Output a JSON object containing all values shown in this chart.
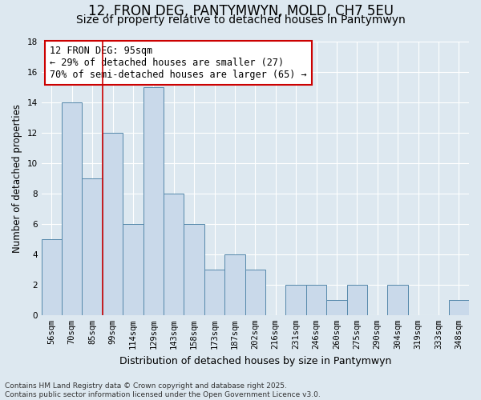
{
  "title": "12, FRON DEG, PANTYMWYN, MOLD, CH7 5EU",
  "subtitle": "Size of property relative to detached houses in Pantymwyn",
  "xlabel": "Distribution of detached houses by size in Pantymwyn",
  "ylabel": "Number of detached properties",
  "categories": [
    "56sqm",
    "70sqm",
    "85sqm",
    "99sqm",
    "114sqm",
    "129sqm",
    "143sqm",
    "158sqm",
    "173sqm",
    "187sqm",
    "202sqm",
    "216sqm",
    "231sqm",
    "246sqm",
    "260sqm",
    "275sqm",
    "290sqm",
    "304sqm",
    "319sqm",
    "333sqm",
    "348sqm"
  ],
  "values": [
    5,
    14,
    9,
    12,
    6,
    15,
    8,
    6,
    3,
    4,
    3,
    0,
    2,
    2,
    1,
    2,
    0,
    2,
    0,
    0,
    1
  ],
  "bar_color": "#c9d9ea",
  "bar_edge_color": "#5588aa",
  "red_line_x": 2.5,
  "annotation_line1": "12 FRON DEG: 95sqm",
  "annotation_line2": "← 29% of detached houses are smaller (27)",
  "annotation_line3": "70% of semi-detached houses are larger (65) →",
  "annotation_box_color": "#ffffff",
  "annotation_box_edge": "#cc0000",
  "ylim": [
    0,
    18
  ],
  "yticks": [
    0,
    2,
    4,
    6,
    8,
    10,
    12,
    14,
    16,
    18
  ],
  "background_color": "#dde8f0",
  "plot_bg_color": "#dde8f0",
  "grid_color": "#ffffff",
  "footer": "Contains HM Land Registry data © Crown copyright and database right 2025.\nContains public sector information licensed under the Open Government Licence v3.0.",
  "title_fontsize": 12,
  "subtitle_fontsize": 10,
  "xlabel_fontsize": 9,
  "ylabel_fontsize": 8.5,
  "tick_fontsize": 7.5,
  "annotation_fontsize": 8.5,
  "footer_fontsize": 6.5
}
